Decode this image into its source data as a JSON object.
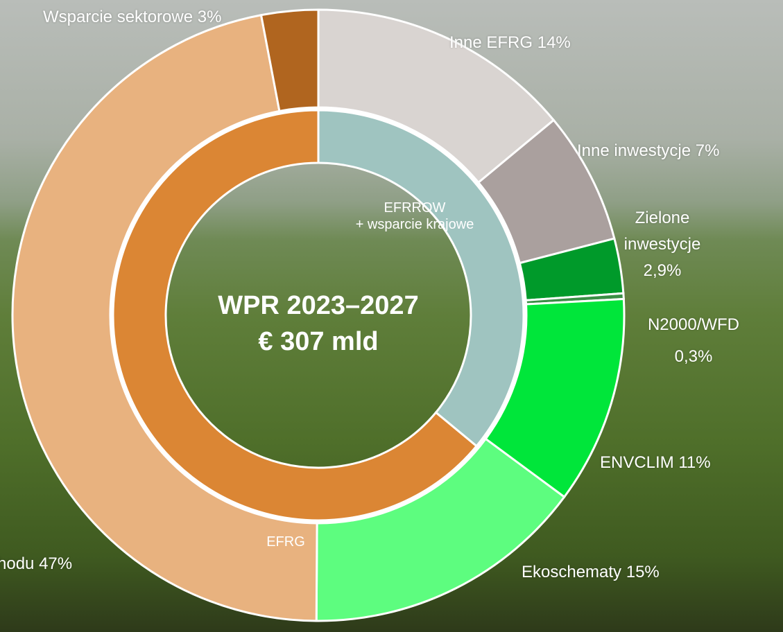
{
  "chart_data": {
    "type": "donut",
    "title": "WPR 2023–2027",
    "subtitle": "€ 307 mld",
    "rings": [
      {
        "categories": [
          [
            "EFRROW",
            "+ wsparcie krajowe"
          ],
          [
            "EFRG"
          ]
        ],
        "values": [
          36,
          64
        ],
        "colors": [
          "#9fc4c0",
          "#db8634"
        ]
      },
      {
        "categories": [
          "Inne EFRG",
          "Inne inwestycje",
          "Zielone inwestycje",
          "N2000/WFD",
          "ENVCLIM",
          "Ekoschematy",
          "hodu",
          "Wsparcie sektorowe"
        ],
        "values": [
          14,
          7,
          2.9,
          0.3,
          11,
          15,
          47,
          3
        ],
        "value_labels": [
          "14%",
          "7%",
          "2,9%",
          "0,3%",
          "11%",
          "15%",
          "47%",
          "3%"
        ],
        "colors": [
          "#d9d4d1",
          "#aaa09e",
          "#009a2a",
          "#3a8f45",
          "#00e63a",
          "#5dfd7f",
          "#e8b27f",
          "#b0651f"
        ]
      }
    ]
  }
}
